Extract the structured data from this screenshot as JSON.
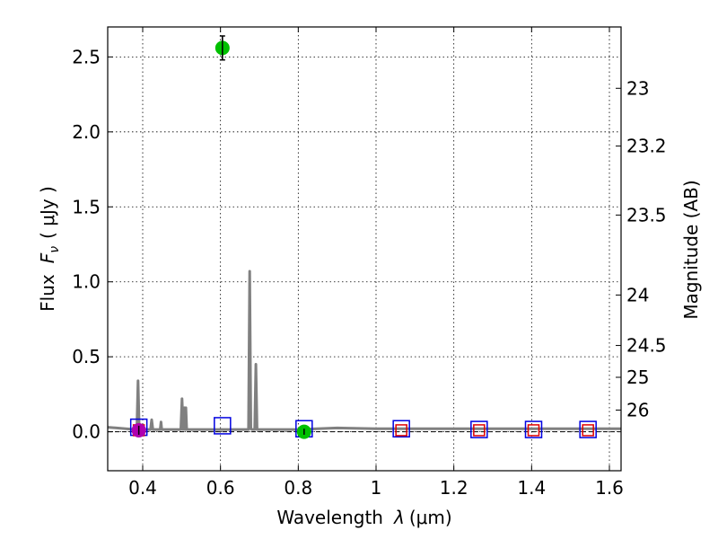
{
  "chart_data": {
    "type": "line",
    "xlabel": "Wavelength",
    "xlabel_symbol": "λ",
    "xlabel_unit": "(μm)",
    "ylabel": "Flux",
    "ylabel_symbol": "F",
    "ylabel_subscript": "ν",
    "ylabel_unit": "( μJy )",
    "ylabel_right": "Magnitude (AB)",
    "xlim": [
      0.31,
      1.63
    ],
    "ylim": [
      -0.26,
      2.7
    ],
    "xticks": [
      {
        "value": 0.4,
        "label": "0.4"
      },
      {
        "value": 0.6,
        "label": "0.6"
      },
      {
        "value": 0.8,
        "label": "0.8"
      },
      {
        "value": 1.0,
        "label": "1"
      },
      {
        "value": 1.2,
        "label": "1.2"
      },
      {
        "value": 1.4,
        "label": "1.4"
      },
      {
        "value": 1.6,
        "label": "1.6"
      }
    ],
    "yticks": [
      {
        "value": 0.0,
        "label": "0.0"
      },
      {
        "value": 0.5,
        "label": "0.5"
      },
      {
        "value": 1.0,
        "label": "1.0"
      },
      {
        "value": 1.5,
        "label": "1.5"
      },
      {
        "value": 2.0,
        "label": "2.0"
      },
      {
        "value": 2.5,
        "label": "2.5"
      }
    ],
    "mag_ticks": [
      {
        "value": 23,
        "label": "23"
      },
      {
        "value": 23.2,
        "label": "23.2"
      },
      {
        "value": 23.5,
        "label": "23.5"
      },
      {
        "value": 24,
        "label": "24"
      },
      {
        "value": 24.5,
        "label": "24.5"
      },
      {
        "value": 25,
        "label": "25"
      },
      {
        "value": 26,
        "label": "26"
      }
    ],
    "series": [
      {
        "name": "SED model",
        "kind": "line",
        "color": "#808080",
        "x": [
          0.31,
          0.38,
          0.385,
          0.388,
          0.391,
          0.395,
          0.42,
          0.423,
          0.426,
          0.445,
          0.447,
          0.449,
          0.498,
          0.501,
          0.504,
          0.507,
          0.509,
          0.511,
          0.513,
          0.515,
          0.6,
          0.672,
          0.675,
          0.678,
          0.681,
          0.685,
          0.688,
          0.691,
          0.694,
          0.697,
          0.7,
          0.8,
          0.9,
          1.0,
          1.1,
          1.2,
          1.3,
          1.4,
          1.5,
          1.63
        ],
        "y": [
          0.03,
          0.015,
          0.015,
          0.34,
          0.02,
          0.015,
          0.015,
          0.08,
          0.015,
          0.015,
          0.065,
          0.015,
          0.015,
          0.22,
          0.015,
          0.16,
          0.015,
          0.16,
          0.015,
          0.015,
          0.015,
          0.015,
          1.07,
          0.02,
          0.015,
          0.015,
          0.015,
          0.45,
          0.015,
          0.015,
          0.015,
          0.015,
          0.025,
          0.02,
          0.02,
          0.02,
          0.02,
          0.02,
          0.02,
          0.02
        ]
      },
      {
        "name": "Observed (green)",
        "kind": "points",
        "color": "#00c000",
        "x": [
          0.605,
          0.815
        ],
        "y": [
          2.56,
          0.0
        ],
        "yerr": [
          0.08,
          0.02
        ]
      },
      {
        "name": "Observed (purple)",
        "kind": "points",
        "color": "#b000b0",
        "x": [
          0.39
        ],
        "y": [
          0.01
        ],
        "yerr": [
          0.03
        ]
      },
      {
        "name": "Model photometry (blue squares)",
        "kind": "squares",
        "color": "#0000e0",
        "x": [
          0.39,
          0.605,
          0.815,
          1.065,
          1.265,
          1.405,
          1.545
        ],
        "y": [
          0.03,
          0.04,
          0.02,
          0.02,
          0.015,
          0.015,
          0.015
        ]
      },
      {
        "name": "Model photometry (red squares)",
        "kind": "squares",
        "color": "#e00000",
        "x": [
          0.39,
          1.065,
          1.265,
          1.405,
          1.545
        ],
        "y": [
          0.01,
          0.01,
          0.01,
          0.01,
          0.01
        ]
      },
      {
        "name": "Zero line",
        "kind": "dashed",
        "color": "#000000",
        "y": 0.0
      }
    ]
  }
}
